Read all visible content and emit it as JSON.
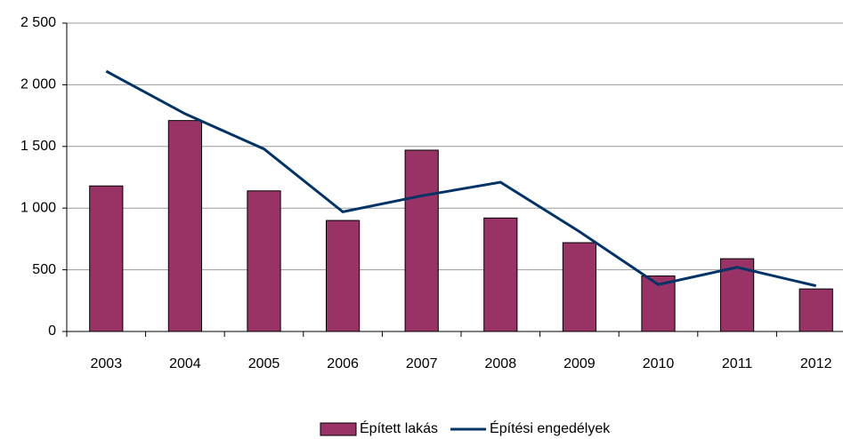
{
  "chart_data": {
    "type": "bar_line",
    "categories": [
      "2003",
      "2004",
      "2005",
      "2006",
      "2007",
      "2008",
      "2009",
      "2010",
      "2011",
      "2012"
    ],
    "series": [
      {
        "name": "Épített lakás",
        "color": "#993366",
        "type": "bar",
        "values": [
          1180,
          1710,
          1140,
          900,
          1470,
          920,
          720,
          450,
          590,
          345
        ]
      },
      {
        "name": "Építési engedélyek",
        "color": "#003366",
        "type": "line",
        "values": [
          2110,
          1765,
          1480,
          970,
          1100,
          1210,
          810,
          380,
          520,
          370
        ]
      }
    ],
    "ylim": [
      0,
      2500
    ],
    "yticks": [
      0,
      500,
      {
        "value": 1000,
        "label": "1 000"
      },
      {
        "value": 1500,
        "label": "1 500"
      },
      {
        "value": 2000,
        "label": "2 000"
      },
      {
        "value": 2500,
        "label": "2 500"
      }
    ],
    "grid": true,
    "legend": "bottom"
  }
}
